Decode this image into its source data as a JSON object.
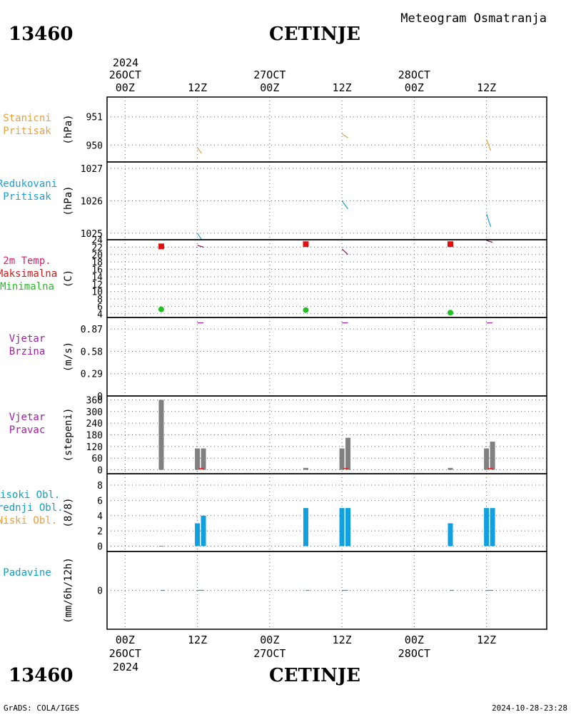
{
  "header": {
    "station_id": "13460",
    "station_name": "CETINJE",
    "chart_title": "Meteogram Osmatranja"
  },
  "footer": {
    "credit": "GrADS: COLA/IGES",
    "timestamp": "2024-10-28-23:28"
  },
  "time_axis": {
    "top_year": "2024",
    "bottom_year": "2024",
    "ticks": [
      {
        "hour": 0,
        "label": "00Z",
        "date": "26OCT"
      },
      {
        "hour": 12,
        "label": "12Z",
        "date": ""
      },
      {
        "hour": 24,
        "label": "00Z",
        "date": "27OCT"
      },
      {
        "hour": 36,
        "label": "12Z",
        "date": ""
      },
      {
        "hour": 48,
        "label": "00Z",
        "date": "28OCT"
      },
      {
        "hour": 60,
        "label": "12Z",
        "date": ""
      }
    ],
    "range_hours": [
      -3,
      70
    ]
  },
  "colors": {
    "station_pressure": "#e8a040",
    "reduced_pressure": "#1aa0d8",
    "temp_label": "#e0206a",
    "temp_line": "#8c1450",
    "maximum": "#e01010",
    "minimum": "#20c020",
    "wind": "#a020a0",
    "wind_dir_bar": "#808080",
    "high_cloud": "#10a0c0",
    "mid_cloud": "#10a0c0",
    "low_cloud": "#e8a040",
    "cloud_bar": "#10a0e0",
    "precip_label": "#10a0c0"
  },
  "chart_data": [
    {
      "type": "line",
      "id": "station_pressure",
      "labels": [
        "Stanicni",
        "Pritisak"
      ],
      "ylabel": "(hPa)",
      "yticks": [
        950,
        951
      ],
      "ylim": [
        949.4,
        951.7
      ],
      "series": [
        {
          "x": [
            12,
            12.7
          ],
          "y": [
            949.9,
            949.7
          ]
        },
        {
          "x": [
            36,
            37
          ],
          "y": [
            950.4,
            950.25
          ]
        },
        {
          "x": [
            60,
            60.7
          ],
          "y": [
            950.2,
            949.8
          ]
        }
      ]
    },
    {
      "type": "line",
      "id": "reduced_pressure",
      "labels": [
        "Redukovani",
        "Pritisak"
      ],
      "ylabel": "(hPa)",
      "yticks": [
        1025,
        1026,
        1027
      ],
      "ylim": [
        1024.8,
        1027.2
      ],
      "series": [
        {
          "x": [
            12,
            12.7
          ],
          "y": [
            1025.0,
            1024.8
          ]
        },
        {
          "x": [
            36,
            37
          ],
          "y": [
            1026.0,
            1025.75
          ]
        },
        {
          "x": [
            60,
            60.7
          ],
          "y": [
            1025.6,
            1025.2
          ]
        }
      ]
    },
    {
      "type": "line",
      "id": "temperature",
      "labels": [
        "2m Temp.",
        "Maksimalna",
        "Minimalna"
      ],
      "ylabel": "(C)",
      "yticks": [
        4,
        6,
        8,
        10,
        12,
        14,
        16,
        18,
        20,
        22,
        24
      ],
      "ylim": [
        3,
        24
      ],
      "series": [
        {
          "x": [
            12,
            13
          ],
          "y": [
            22.5,
            22.0
          ]
        },
        {
          "x": [
            36,
            37
          ],
          "y": [
            21.5,
            20.0
          ]
        },
        {
          "x": [
            60,
            61
          ],
          "y": [
            23.8,
            23.3
          ]
        }
      ],
      "maximum": {
        "x": [
          6,
          30,
          54
        ],
        "y": [
          22.2,
          22.8,
          22.8
        ]
      },
      "minimum": {
        "x": [
          6,
          30,
          54
        ],
        "y": [
          5.2,
          5.0,
          4.3
        ]
      }
    },
    {
      "type": "line",
      "id": "wind_speed",
      "labels": [
        "Vjetar",
        "Brzina"
      ],
      "ylabel": "(m/s)",
      "yticks": [
        0,
        0.29,
        0.58,
        0.87
      ],
      "ylim": [
        0,
        1.02
      ],
      "series": [
        {
          "x": [
            12,
            13
          ],
          "y": [
            0.95,
            0.95
          ]
        },
        {
          "x": [
            36,
            37
          ],
          "y": [
            0.95,
            0.95
          ]
        },
        {
          "x": [
            60,
            61
          ],
          "y": [
            0.95,
            0.95
          ]
        }
      ]
    },
    {
      "type": "bar",
      "id": "wind_direction",
      "labels": [
        "Vjetar",
        "Pravac"
      ],
      "ylabel": "(stepeni)",
      "yticks": [
        0,
        60,
        120,
        180,
        240,
        300,
        360
      ],
      "ylim": [
        -20,
        380
      ],
      "bars": [
        {
          "x": 6,
          "value": 360
        },
        {
          "x": 12,
          "value": 110
        },
        {
          "x": 13,
          "value": 110
        },
        {
          "x": 30,
          "value": 10
        },
        {
          "x": 36,
          "value": 110
        },
        {
          "x": 37,
          "value": 165
        },
        {
          "x": 54,
          "value": 10
        },
        {
          "x": 60,
          "value": 110
        },
        {
          "x": 61,
          "value": 145
        }
      ]
    },
    {
      "type": "bar",
      "id": "cloud_cover",
      "labels": [
        "Visoki Obl.",
        "Srednji Obl.",
        "Niski Obl."
      ],
      "ylabel": "(8/8)",
      "yticks": [
        0,
        2,
        4,
        6,
        8
      ],
      "ylim": [
        -0.7,
        9.5
      ],
      "bars": [
        {
          "x": 12,
          "value": 3
        },
        {
          "x": 13,
          "value": 4
        },
        {
          "x": 30,
          "value": 5
        },
        {
          "x": 36,
          "value": 5
        },
        {
          "x": 37,
          "value": 5
        },
        {
          "x": 54,
          "value": 3
        },
        {
          "x": 60,
          "value": 5
        },
        {
          "x": 61,
          "value": 5
        }
      ]
    },
    {
      "type": "line",
      "id": "precipitation",
      "labels": [
        "Padavine"
      ],
      "ylabel": "(mm/6h/12h)",
      "yticks": [
        0
      ],
      "ylim": [
        -5,
        5
      ],
      "series": [
        {
          "x": [
            6,
            6.6
          ],
          "y": [
            0,
            0
          ]
        },
        {
          "x": [
            12,
            13
          ],
          "y": [
            0,
            0
          ]
        },
        {
          "x": [
            30,
            30.6
          ],
          "y": [
            0,
            0
          ]
        },
        {
          "x": [
            36,
            37
          ],
          "y": [
            0,
            0
          ]
        },
        {
          "x": [
            54,
            54.6
          ],
          "y": [
            0,
            0
          ]
        },
        {
          "x": [
            60,
            61
          ],
          "y": [
            0,
            0
          ]
        }
      ]
    }
  ]
}
